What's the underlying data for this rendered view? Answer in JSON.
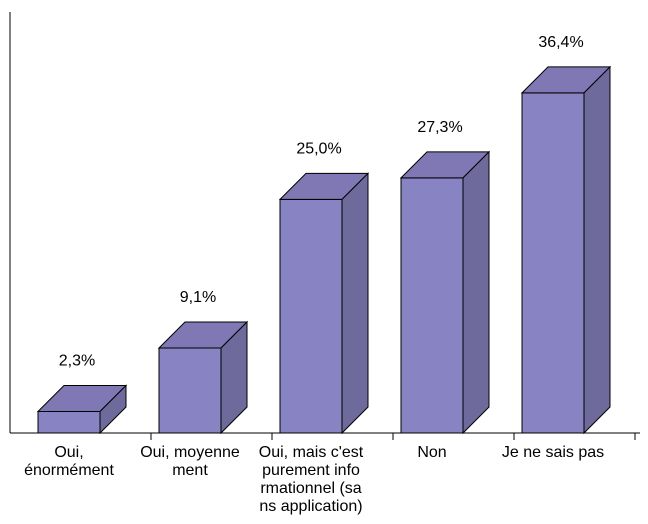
{
  "chart_data": {
    "type": "bar",
    "categories": [
      [
        "Oui,",
        "énormément"
      ],
      [
        "Oui, moyenne",
        "ment"
      ],
      [
        "Oui, mais c'est",
        "purement info",
        "rmationnel (sa",
        "ns application)"
      ],
      [
        "Non"
      ],
      [
        "Je ne sais pas"
      ]
    ],
    "values": [
      2.3,
      9.1,
      25.0,
      27.3,
      36.4
    ],
    "value_labels": [
      "2,3%",
      "9,1%",
      "25,0%",
      "27,3%",
      "36,4%"
    ],
    "ylim": [
      0,
      40
    ],
    "grid": false,
    "legend": "none",
    "three_d": true,
    "colors": {
      "front": "#8883c2",
      "top": "#7f78b5",
      "side": "#6e6a9c",
      "stroke": "#000000"
    }
  }
}
